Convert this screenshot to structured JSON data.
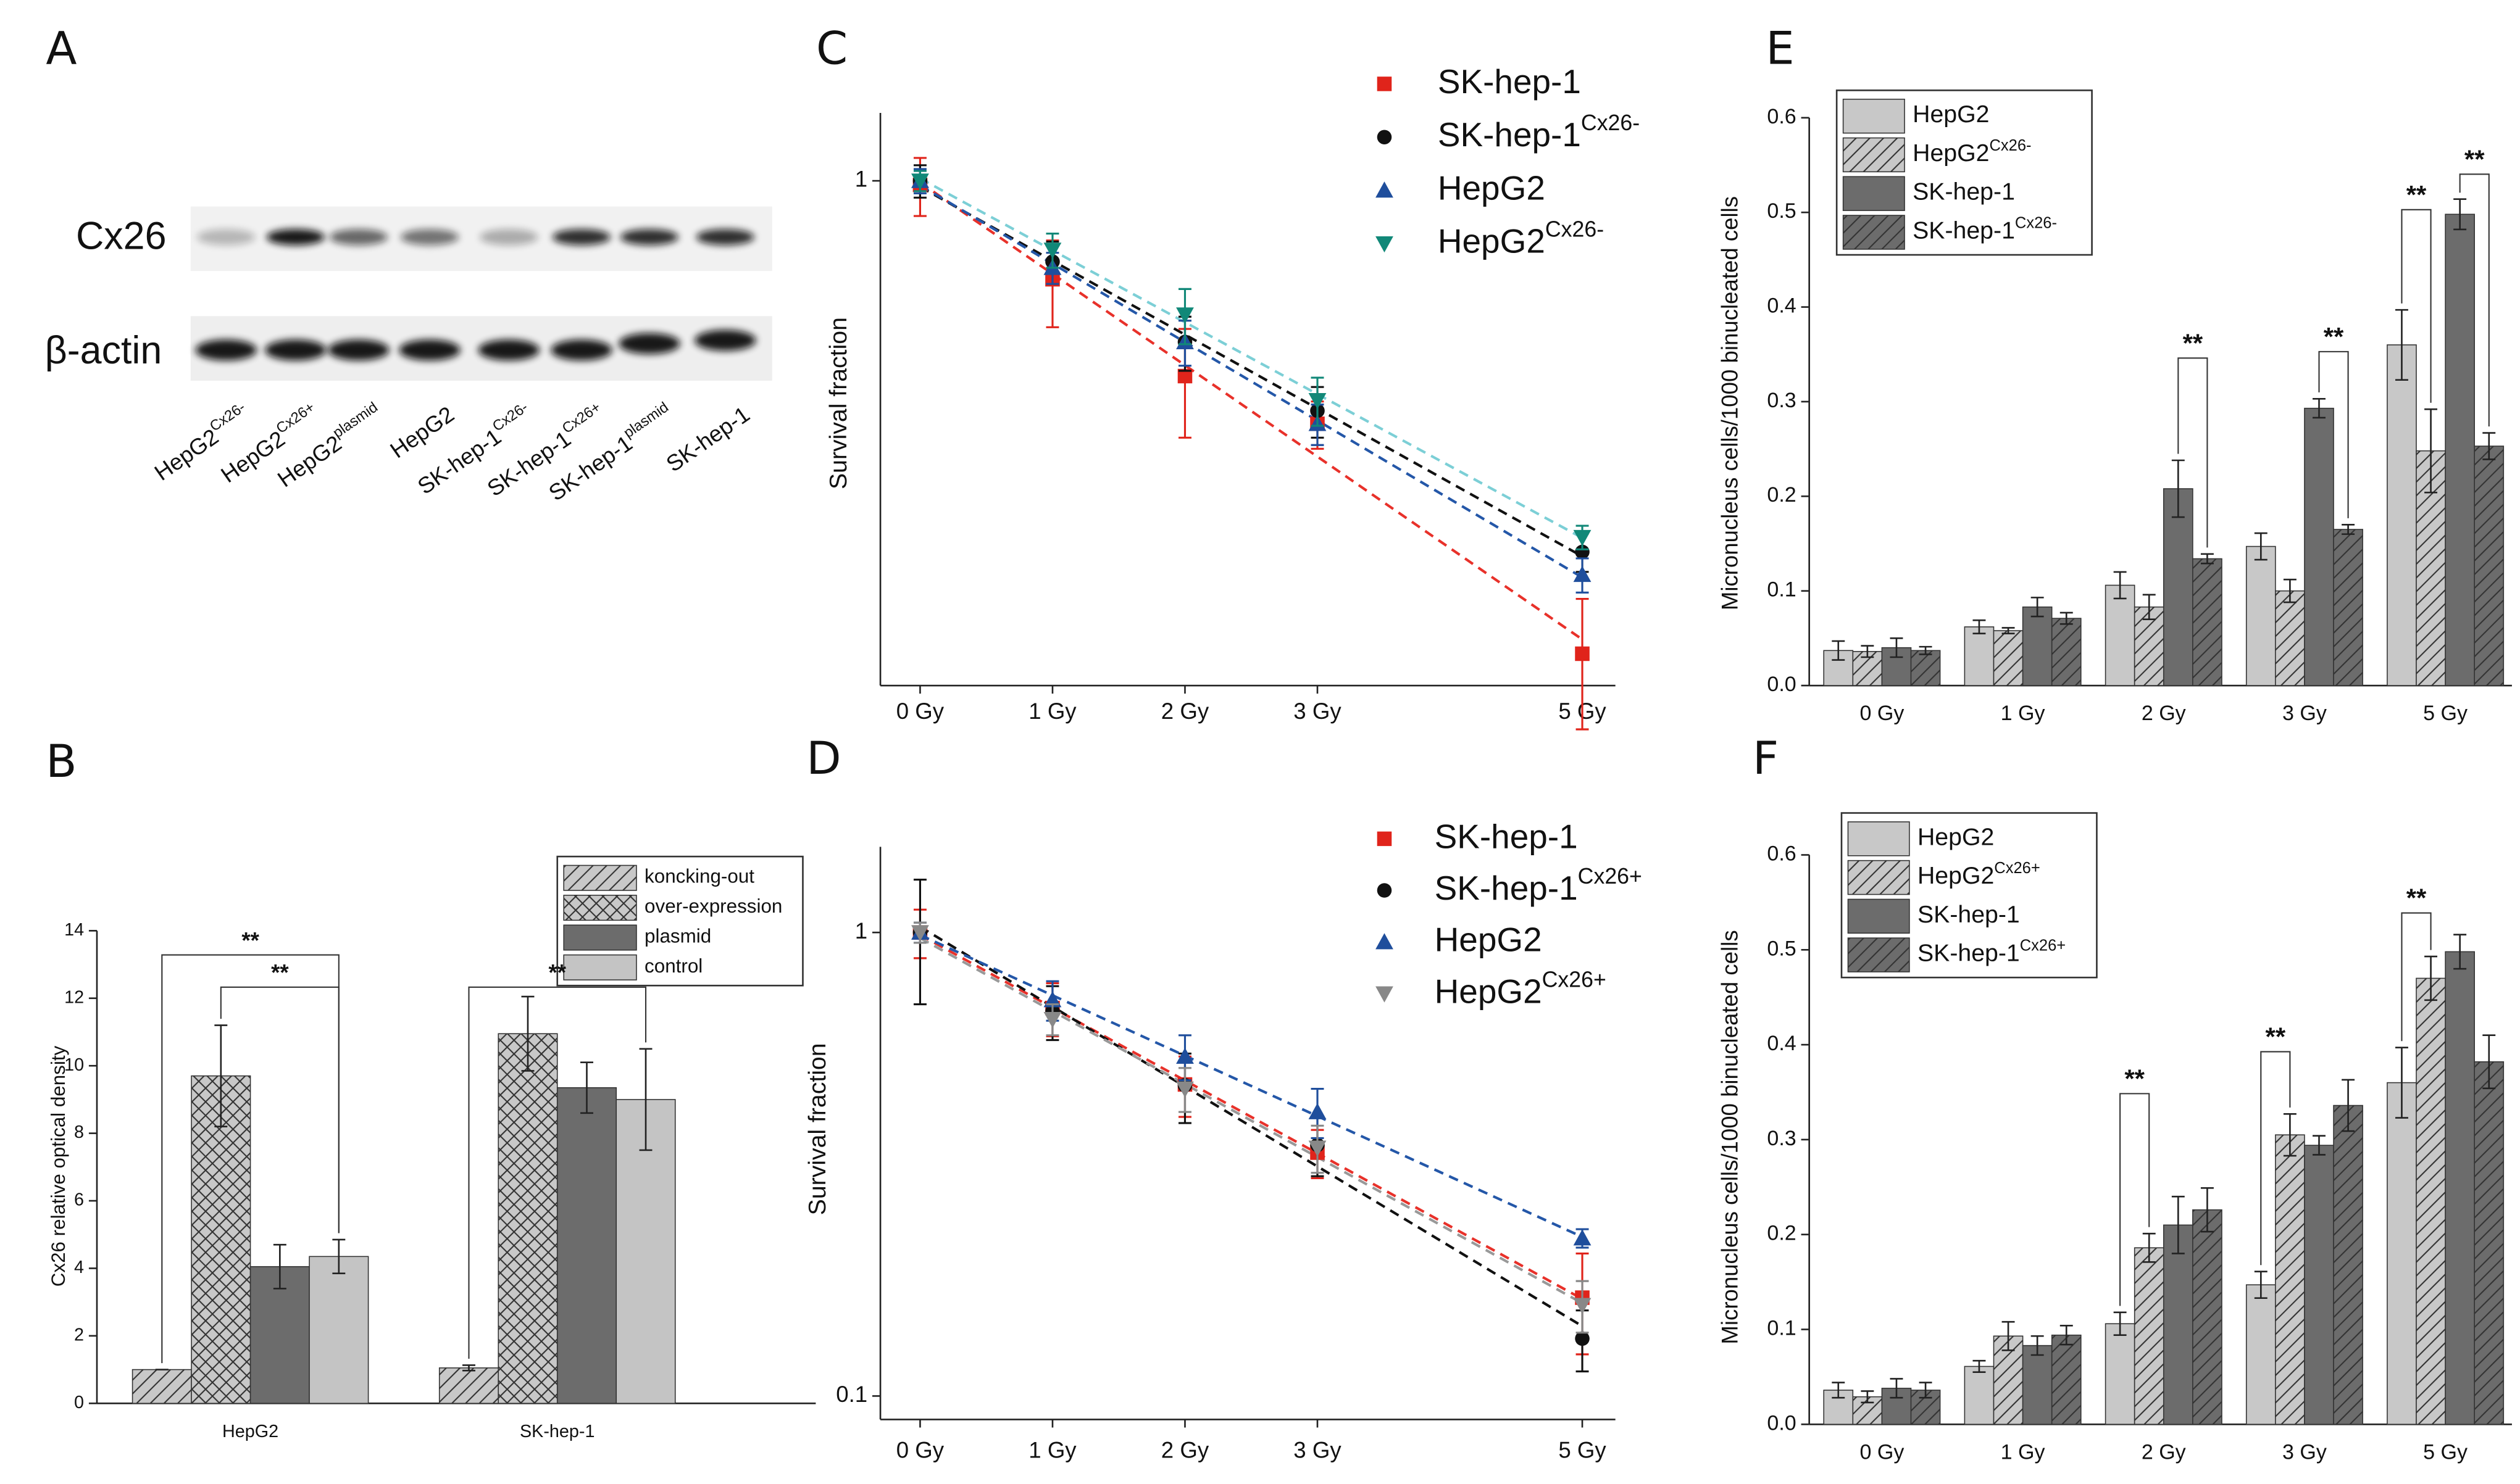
{
  "blot": {
    "panel": "A",
    "rows": [
      "Cx26",
      "β-actin"
    ],
    "lanes": [
      {
        "name": "HepG2",
        "sup": "Cx26-"
      },
      {
        "name": "HepG2",
        "sup": "Cx26+"
      },
      {
        "name": "HepG2",
        "sup": "plasmid"
      },
      {
        "name": "HepG2"
      },
      {
        "name": "SK-hep-1",
        "sup": "Cx26-"
      },
      {
        "name": "SK-hep-1",
        "sup": "Cx26+"
      },
      {
        "name": "SK-hep-1",
        "sup": "plasmid"
      },
      {
        "name": "SK-hep-1"
      }
    ]
  },
  "chart_data": [
    {
      "panel": "B",
      "type": "bar",
      "ylabel": "Cx26 relative optical density",
      "categories": [
        "HepG2",
        "SK-hep-1"
      ],
      "ylim": [
        0,
        14
      ],
      "yticks": [
        0,
        2,
        4,
        6,
        8,
        10,
        12,
        14
      ],
      "series": [
        {
          "name": "koncking-out",
          "color": "#c8c8c8",
          "pattern": "diagonal",
          "values": [
            1.0,
            1.05
          ],
          "errors": [
            0,
            0.08
          ]
        },
        {
          "name": "over-expression",
          "color": "#c8c8c8",
          "pattern": "crosshatch",
          "values": [
            9.7,
            10.95
          ],
          "errors": [
            1.5,
            1.1
          ]
        },
        {
          "name": "plasmid",
          "color": "#6c6c6c",
          "pattern": "none",
          "values": [
            4.05,
            9.35
          ],
          "errors": [
            0.65,
            0.75
          ]
        },
        {
          "name": "control",
          "color": "#c4c4c4",
          "pattern": "none",
          "values": [
            4.35,
            9.0
          ],
          "errors": [
            0.5,
            1.5
          ]
        }
      ],
      "annotations": [
        {
          "text": "**"
        },
        {
          "text": "**"
        },
        {
          "text": "**"
        }
      ]
    },
    {
      "panel": "C",
      "type": "scatter",
      "ylabel": "Survival fraction",
      "ylog": true,
      "trendline": true,
      "x": [
        0,
        1,
        2,
        3,
        5
      ],
      "xlim": [
        -0.3,
        5.25
      ],
      "xticks": [
        {
          "value": 0,
          "label": "0 Gy"
        },
        {
          "value": 1,
          "label": "1 Gy"
        },
        {
          "value": 2,
          "label": "2 Gy"
        },
        {
          "value": 3,
          "label": "3 Gy"
        },
        {
          "value": 5,
          "label": "5 Gy"
        }
      ],
      "ylim": [
        0.082,
        1.4
      ],
      "yticks": [
        1
      ],
      "series": [
        {
          "name": "SK-hep-1",
          "color": "#e0241b",
          "trend_color": "#e8312a",
          "marker": "square",
          "values": [
            0.98,
            0.614,
            0.38,
            0.3,
            0.096
          ],
          "errors": [
            0.14,
            0.13,
            0.1,
            0.035,
            0.03
          ]
        },
        {
          "name": "SK-hep-1",
          "sup": "Cx26-",
          "color": "#111111",
          "trend_color": "#111111",
          "marker": "circle",
          "values": [
            1.0,
            0.67,
            0.45,
            0.32,
            0.159
          ],
          "errors": [
            0.08,
            0.07,
            0.06,
            0.04,
            0.015
          ]
        },
        {
          "name": "HepG2",
          "color": "#1f4e9c",
          "trend_color": "#2457a8",
          "marker": "triangle",
          "values": [
            1.0,
            0.65,
            0.45,
            0.3,
            0.142
          ],
          "errors": [
            0.06,
            0.05,
            0.05,
            0.03,
            0.012
          ]
        },
        {
          "name": "HepG2",
          "sup": "Cx26-",
          "color": "#118878",
          "trend_color": "#7ccfd6",
          "marker": "triangle-down",
          "values": [
            1.0,
            0.71,
            0.515,
            0.337,
            0.171
          ],
          "errors": [
            0.05,
            0.06,
            0.07,
            0.04,
            0.01
          ]
        }
      ]
    },
    {
      "panel": "D",
      "type": "scatter",
      "ylabel": "Survival fraction",
      "ylog": true,
      "trendline": true,
      "x": [
        0,
        1,
        2,
        3,
        5
      ],
      "xlim": [
        -0.3,
        5.25
      ],
      "xticks": [
        {
          "value": 0,
          "label": "0 Gy"
        },
        {
          "value": 1,
          "label": "1 Gy"
        },
        {
          "value": 2,
          "label": "2 Gy"
        },
        {
          "value": 3,
          "label": "3 Gy"
        },
        {
          "value": 5,
          "label": "5 Gy"
        }
      ],
      "ylim": [
        0.089,
        1.53
      ],
      "yticks": [
        0.1,
        1
      ],
      "series": [
        {
          "name": "SK-hep-1",
          "color": "#e0241b",
          "trend_color": "#e8312a",
          "marker": "square",
          "values": [
            1.0,
            0.687,
            0.47,
            0.335,
            0.163
          ],
          "errors": [
            0.12,
            0.09,
            0.07,
            0.04,
            0.04
          ]
        },
        {
          "name": "SK-hep-1",
          "sup": "Cx26+",
          "color": "#111111",
          "trend_color": "#111111",
          "marker": "circle",
          "values": [
            1.0,
            0.676,
            0.468,
            0.348,
            0.133
          ],
          "errors": [
            0.3,
            0.09,
            0.08,
            0.05,
            0.02
          ]
        },
        {
          "name": "HepG2",
          "color": "#1f4e9c",
          "trend_color": "#2457a8",
          "marker": "triangle",
          "values": [
            1.0,
            0.715,
            0.54,
            0.41,
            0.219
          ],
          "errors": [
            0.05,
            0.07,
            0.06,
            0.05,
            0.01
          ]
        },
        {
          "name": "HepG2",
          "sup": "Cx26+",
          "color": "#888888",
          "trend_color": "#999999",
          "marker": "triangle-down",
          "values": [
            1.0,
            0.65,
            0.46,
            0.343,
            0.157
          ],
          "errors": [
            0.05,
            0.05,
            0.05,
            0.04,
            0.02
          ]
        }
      ]
    },
    {
      "panel": "E",
      "type": "bar",
      "ylabel": "Micronucleus cells/1000 binucleated cells",
      "categories": [
        "0 Gy",
        "1 Gy",
        "2 Gy",
        "3 Gy",
        "5 Gy"
      ],
      "ylim": [
        0,
        0.6
      ],
      "yticks": [
        {
          "value": 0,
          "label": "0.0"
        },
        0.1,
        0.2,
        0.3,
        0.4,
        0.5,
        0.6
      ],
      "series": [
        {
          "name": "HepG2",
          "color": "#c8c8c8",
          "pattern": "none",
          "values": [
            0.037,
            0.062,
            0.106,
            0.147,
            0.36
          ],
          "errors": [
            0.01,
            0.007,
            0.014,
            0.014,
            0.037
          ]
        },
        {
          "name": "HepG2",
          "sup": "Cx26-",
          "color": "#c8c8c8",
          "pattern": "diagonal",
          "values": [
            0.036,
            0.058,
            0.083,
            0.1,
            0.248
          ],
          "errors": [
            0.006,
            0.003,
            0.013,
            0.012,
            0.044
          ]
        },
        {
          "name": "SK-hep-1",
          "color": "#6c6c6c",
          "pattern": "none",
          "values": [
            0.04,
            0.083,
            0.208,
            0.293,
            0.498
          ],
          "errors": [
            0.01,
            0.01,
            0.03,
            0.01,
            0.016
          ]
        },
        {
          "name": "SK-hep-1",
          "sup": "Cx26-",
          "color": "#6c6c6c",
          "pattern": "diagonal",
          "values": [
            0.037,
            0.071,
            0.134,
            0.165,
            0.253
          ],
          "errors": [
            0.004,
            0.006,
            0.005,
            0.005,
            0.014
          ]
        }
      ],
      "annotations": [
        {
          "text": "**"
        },
        {
          "text": "**"
        },
        {
          "text": "**"
        },
        {
          "text": "**"
        }
      ]
    },
    {
      "panel": "F",
      "type": "bar",
      "ylabel": "Micronucleus cells/1000 binucleated cells",
      "categories": [
        "0 Gy",
        "1 Gy",
        "2 Gy",
        "3 Gy",
        "5 Gy"
      ],
      "ylim": [
        0,
        0.6
      ],
      "yticks": [
        {
          "value": 0,
          "label": "0.0"
        },
        0.1,
        0.2,
        0.3,
        0.4,
        0.5,
        0.6
      ],
      "series": [
        {
          "name": "HepG2",
          "color": "#c8c8c8",
          "pattern": "none",
          "values": [
            0.036,
            0.061,
            0.106,
            0.147,
            0.36
          ],
          "errors": [
            0.008,
            0.006,
            0.012,
            0.014,
            0.037
          ]
        },
        {
          "name": "HepG2",
          "sup": "Cx26+",
          "color": "#c8c8c8",
          "pattern": "diagonal",
          "values": [
            0.029,
            0.093,
            0.186,
            0.305,
            0.47
          ],
          "errors": [
            0.006,
            0.015,
            0.015,
            0.022,
            0.023
          ]
        },
        {
          "name": "SK-hep-1",
          "color": "#6c6c6c",
          "pattern": "none",
          "values": [
            0.038,
            0.083,
            0.21,
            0.294,
            0.498
          ],
          "errors": [
            0.01,
            0.01,
            0.03,
            0.01,
            0.018
          ]
        },
        {
          "name": "SK-hep-1",
          "sup": "Cx26+",
          "color": "#6c6c6c",
          "pattern": "diagonal",
          "values": [
            0.036,
            0.094,
            0.226,
            0.336,
            0.382
          ],
          "errors": [
            0.008,
            0.01,
            0.023,
            0.027,
            0.028
          ]
        }
      ],
      "annotations": [
        {
          "text": "**"
        },
        {
          "text": "**"
        },
        {
          "text": "**"
        }
      ]
    }
  ]
}
